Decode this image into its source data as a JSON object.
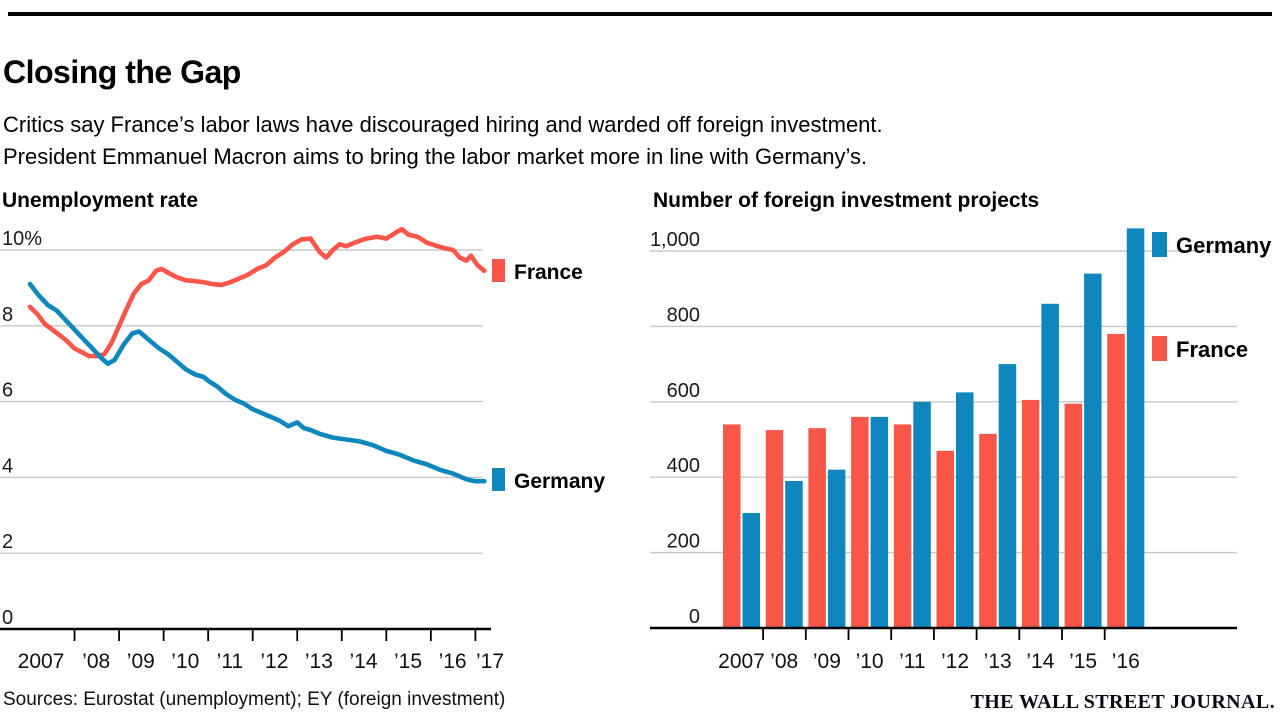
{
  "page": {
    "title": "Closing the Gap",
    "subtitle_line1": "Critics say France’s labor laws have discouraged hiring and warded off foreign investment.",
    "subtitle_line2": "President Emmanuel Macron aims to bring the labor market more in line with Germany’s.",
    "sources": "Sources: Eurostat (unemployment); EY (foreign investment)",
    "brand": "THE WALL STREET JOURNAL."
  },
  "colors": {
    "france": "#f9564a",
    "germany": "#0f86bc",
    "gridline": "#c8c8c8",
    "axis": "#000000",
    "tick_label": "#1a1a1a"
  },
  "chart_data": [
    {
      "type": "line",
      "title": "Unemployment rate",
      "unit": "percent",
      "ylim": [
        0,
        11
      ],
      "yticks": [
        0,
        2,
        4,
        6,
        8,
        10
      ],
      "ytick_labels": [
        "0",
        "2",
        "4",
        "6",
        "8",
        "10%"
      ],
      "xlim": [
        2007,
        2017.35
      ],
      "xtick_labels": [
        "2007",
        "’08",
        "’09",
        "’10",
        "’11",
        "’12",
        "’13",
        "’14",
        "’15",
        "’16",
        "’17"
      ],
      "grid": true,
      "legend_position": "right",
      "series": [
        {
          "name": "France",
          "color": "#f9564a",
          "points": [
            [
              2007.0,
              8.5
            ],
            [
              2007.17,
              8.3
            ],
            [
              2007.33,
              8.05
            ],
            [
              2007.5,
              7.9
            ],
            [
              2007.67,
              7.75
            ],
            [
              2007.83,
              7.6
            ],
            [
              2008.0,
              7.4
            ],
            [
              2008.17,
              7.3
            ],
            [
              2008.33,
              7.2
            ],
            [
              2008.5,
              7.2
            ],
            [
              2008.67,
              7.25
            ],
            [
              2008.83,
              7.55
            ],
            [
              2009.0,
              8.0
            ],
            [
              2009.17,
              8.45
            ],
            [
              2009.33,
              8.85
            ],
            [
              2009.5,
              9.1
            ],
            [
              2009.67,
              9.2
            ],
            [
              2009.83,
              9.45
            ],
            [
              2009.95,
              9.5
            ],
            [
              2010.1,
              9.4
            ],
            [
              2010.3,
              9.28
            ],
            [
              2010.5,
              9.2
            ],
            [
              2010.7,
              9.18
            ],
            [
              2010.9,
              9.15
            ],
            [
              2011.1,
              9.1
            ],
            [
              2011.3,
              9.08
            ],
            [
              2011.5,
              9.15
            ],
            [
              2011.7,
              9.25
            ],
            [
              2011.9,
              9.35
            ],
            [
              2012.1,
              9.5
            ],
            [
              2012.3,
              9.6
            ],
            [
              2012.5,
              9.8
            ],
            [
              2012.7,
              9.95
            ],
            [
              2012.9,
              10.15
            ],
            [
              2013.1,
              10.28
            ],
            [
              2013.3,
              10.3
            ],
            [
              2013.5,
              9.95
            ],
            [
              2013.65,
              9.8
            ],
            [
              2013.8,
              10.0
            ],
            [
              2013.95,
              10.15
            ],
            [
              2014.1,
              10.1
            ],
            [
              2014.3,
              10.2
            ],
            [
              2014.55,
              10.3
            ],
            [
              2014.8,
              10.35
            ],
            [
              2015.0,
              10.3
            ],
            [
              2015.2,
              10.45
            ],
            [
              2015.35,
              10.55
            ],
            [
              2015.5,
              10.4
            ],
            [
              2015.7,
              10.35
            ],
            [
              2015.9,
              10.2
            ],
            [
              2016.1,
              10.12
            ],
            [
              2016.3,
              10.05
            ],
            [
              2016.5,
              10.0
            ],
            [
              2016.65,
              9.8
            ],
            [
              2016.8,
              9.72
            ],
            [
              2016.9,
              9.85
            ],
            [
              2017.05,
              9.6
            ],
            [
              2017.2,
              9.45
            ]
          ]
        },
        {
          "name": "Germany",
          "color": "#0f86bc",
          "points": [
            [
              2007.0,
              9.1
            ],
            [
              2007.2,
              8.8
            ],
            [
              2007.4,
              8.55
            ],
            [
              2007.6,
              8.4
            ],
            [
              2007.8,
              8.15
            ],
            [
              2008.0,
              7.9
            ],
            [
              2008.2,
              7.65
            ],
            [
              2008.4,
              7.4
            ],
            [
              2008.6,
              7.15
            ],
            [
              2008.75,
              7.0
            ],
            [
              2008.9,
              7.1
            ],
            [
              2009.1,
              7.5
            ],
            [
              2009.3,
              7.8
            ],
            [
              2009.45,
              7.85
            ],
            [
              2009.6,
              7.7
            ],
            [
              2009.75,
              7.55
            ],
            [
              2009.9,
              7.4
            ],
            [
              2010.1,
              7.25
            ],
            [
              2010.3,
              7.05
            ],
            [
              2010.5,
              6.85
            ],
            [
              2010.7,
              6.72
            ],
            [
              2010.9,
              6.65
            ],
            [
              2011.0,
              6.55
            ],
            [
              2011.2,
              6.4
            ],
            [
              2011.4,
              6.2
            ],
            [
              2011.6,
              6.05
            ],
            [
              2011.8,
              5.95
            ],
            [
              2012.0,
              5.8
            ],
            [
              2012.2,
              5.7
            ],
            [
              2012.4,
              5.6
            ],
            [
              2012.6,
              5.5
            ],
            [
              2012.8,
              5.35
            ],
            [
              2013.0,
              5.45
            ],
            [
              2013.15,
              5.3
            ],
            [
              2013.3,
              5.25
            ],
            [
              2013.5,
              5.15
            ],
            [
              2013.8,
              5.05
            ],
            [
              2014.1,
              5.0
            ],
            [
              2014.4,
              4.95
            ],
            [
              2014.7,
              4.85
            ],
            [
              2015.0,
              4.7
            ],
            [
              2015.3,
              4.6
            ],
            [
              2015.6,
              4.45
            ],
            [
              2015.9,
              4.35
            ],
            [
              2016.2,
              4.2
            ],
            [
              2016.5,
              4.1
            ],
            [
              2016.8,
              3.95
            ],
            [
              2017.0,
              3.9
            ],
            [
              2017.2,
              3.9
            ]
          ]
        }
      ]
    },
    {
      "type": "bar",
      "title": "Number of foreign investment projects",
      "ylim": [
        0,
        1080
      ],
      "yticks": [
        0,
        200,
        400,
        600,
        800,
        1000
      ],
      "ytick_labels": [
        "0",
        "200",
        "400",
        "600",
        "800",
        "1,000"
      ],
      "categories": [
        "2007",
        "’08",
        "’09",
        "’10",
        "’11",
        "’12",
        "’13",
        "’14",
        "’15",
        "’16"
      ],
      "grid": true,
      "legend_position": "right",
      "series": [
        {
          "name": "France",
          "color": "#f9564a",
          "values": [
            540,
            525,
            530,
            560,
            540,
            470,
            515,
            605,
            595,
            780
          ]
        },
        {
          "name": "Germany",
          "color": "#0f86bc",
          "values": [
            305,
            390,
            420,
            560,
            600,
            625,
            700,
            860,
            940,
            1060
          ]
        }
      ]
    }
  ]
}
